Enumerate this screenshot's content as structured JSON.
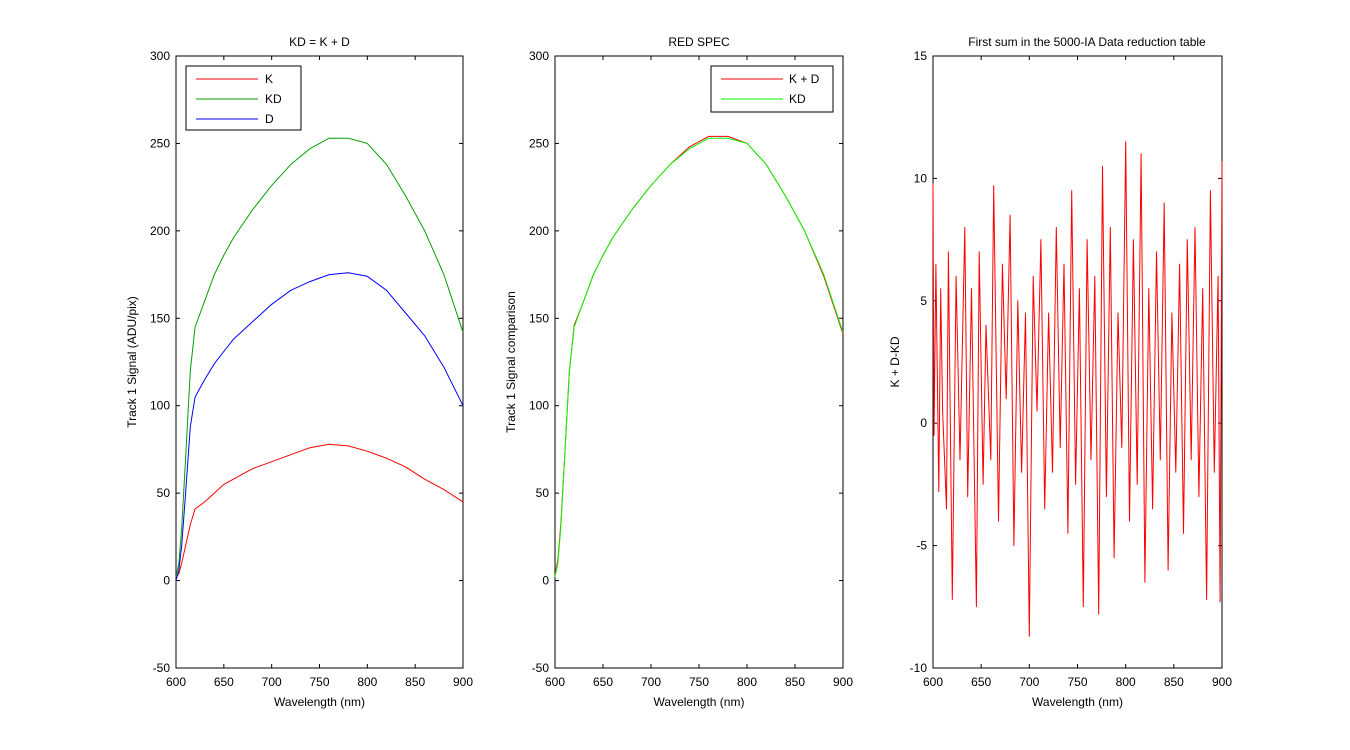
{
  "chart_data": [
    {
      "type": "line",
      "title": "KD = K + D",
      "xlabel": "Wavelength (nm)",
      "ylabel": "Track 1 Signal (ADU/pix)",
      "xlim": [
        600,
        900
      ],
      "ylim": [
        -50,
        300
      ],
      "xticks": [
        "600",
        "650",
        "700",
        "750",
        "800",
        "850",
        "900"
      ],
      "yticks": [
        "-50",
        "0",
        "50",
        "100",
        "150",
        "200",
        "250",
        "300"
      ],
      "grid": false,
      "legend_position": "top-left",
      "series": [
        {
          "name": "K",
          "color": "#ff0000",
          "x": [
            600,
            603,
            606,
            610,
            615,
            620,
            630,
            640,
            650,
            660,
            680,
            700,
            720,
            740,
            760,
            780,
            800,
            820,
            840,
            860,
            880,
            900
          ],
          "y": [
            2,
            4,
            10,
            20,
            32,
            41,
            45,
            50,
            55,
            58,
            64,
            68,
            72,
            76,
            78,
            77,
            74,
            70,
            65,
            58,
            52,
            45
          ]
        },
        {
          "name": "KD",
          "color": "#00a000",
          "x": [
            600,
            603,
            606,
            610,
            615,
            620,
            630,
            640,
            650,
            660,
            680,
            700,
            720,
            740,
            760,
            780,
            800,
            820,
            840,
            860,
            880,
            900
          ],
          "y": [
            2,
            10,
            30,
            70,
            120,
            145,
            160,
            175,
            186,
            196,
            212,
            226,
            238,
            247,
            253,
            253,
            250,
            238,
            220,
            200,
            175,
            142
          ]
        },
        {
          "name": "D",
          "color": "#0000ff",
          "x": [
            600,
            603,
            606,
            610,
            615,
            620,
            630,
            640,
            650,
            660,
            680,
            700,
            720,
            740,
            760,
            780,
            800,
            820,
            840,
            860,
            880,
            900
          ],
          "y": [
            0,
            6,
            20,
            50,
            88,
            105,
            115,
            124,
            131,
            138,
            148,
            158,
            166,
            171,
            175,
            176,
            174,
            166,
            153,
            140,
            122,
            100
          ]
        }
      ]
    },
    {
      "type": "line",
      "title": "RED SPEC",
      "xlabel": "Wavelength (nm)",
      "ylabel": "Track 1 Signal comparison",
      "xlim": [
        600,
        900
      ],
      "ylim": [
        -50,
        300
      ],
      "xticks": [
        "600",
        "650",
        "700",
        "750",
        "800",
        "850",
        "900"
      ],
      "yticks": [
        "-50",
        "0",
        "50",
        "100",
        "150",
        "200",
        "250",
        "300"
      ],
      "grid": false,
      "legend_position": "top-right",
      "series": [
        {
          "name": "K + D",
          "color": "#ff0000",
          "x": [
            600,
            603,
            606,
            610,
            615,
            620,
            630,
            640,
            650,
            660,
            680,
            700,
            720,
            740,
            760,
            780,
            800,
            820,
            840,
            860,
            880,
            900
          ],
          "y": [
            3,
            12,
            32,
            70,
            120,
            146,
            160,
            175,
            186,
            196,
            212,
            226,
            238,
            248,
            254,
            254,
            250,
            238,
            220,
            200,
            174,
            141
          ]
        },
        {
          "name": "KD",
          "color": "#00ff00",
          "x": [
            600,
            603,
            606,
            610,
            615,
            620,
            630,
            640,
            650,
            660,
            680,
            700,
            720,
            740,
            760,
            780,
            800,
            820,
            840,
            860,
            880,
            900
          ],
          "y": [
            2,
            10,
            30,
            70,
            120,
            145,
            160,
            175,
            186,
            196,
            212,
            226,
            238,
            247,
            253,
            253,
            250,
            238,
            220,
            200,
            175,
            142
          ]
        }
      ]
    },
    {
      "type": "line",
      "title": "First sum in the 5000-IA Data reduction table",
      "xlabel": "Wavelength (nm)",
      "ylabel": "K + D-KD",
      "xlim": [
        600,
        900
      ],
      "ylim": [
        -10,
        15
      ],
      "xticks": [
        "600",
        "650",
        "700",
        "750",
        "800",
        "850",
        "900"
      ],
      "yticks": [
        "-10",
        "-5",
        "0",
        "5",
        "10",
        "15"
      ],
      "grid": false,
      "series": [
        {
          "color": "#ff0000",
          "x": [
            600,
            601,
            603,
            606,
            608,
            610,
            614,
            616,
            620,
            624,
            628,
            633,
            636,
            640,
            645,
            648,
            652,
            655,
            660,
            663,
            668,
            672,
            676,
            680,
            684,
            688,
            692,
            696,
            700,
            704,
            708,
            712,
            716,
            720,
            724,
            728,
            732,
            736,
            740,
            744,
            748,
            752,
            756,
            760,
            764,
            768,
            772,
            776,
            780,
            784,
            788,
            792,
            796,
            800,
            804,
            808,
            812,
            816,
            820,
            824,
            828,
            832,
            836,
            840,
            844,
            848,
            852,
            856,
            860,
            864,
            868,
            872,
            876,
            880,
            884,
            888,
            892,
            896,
            898,
            900
          ],
          "y": [
            9.8,
            -0.5,
            6.5,
            -2.8,
            5.5,
            0.5,
            -3.5,
            7.0,
            -7.2,
            6.0,
            -1.5,
            8.0,
            -3.0,
            5.5,
            -7.5,
            7.0,
            -2.5,
            4.0,
            -1.5,
            9.7,
            -4.0,
            6.5,
            1.0,
            8.5,
            -5.0,
            5.0,
            -2.0,
            4.5,
            -8.7,
            6.0,
            0.5,
            7.5,
            -3.5,
            4.5,
            -2.0,
            8.0,
            -1.0,
            6.5,
            -4.5,
            9.5,
            -2.5,
            5.5,
            -7.5,
            7.5,
            -1.5,
            6.0,
            -7.8,
            10.5,
            -3.0,
            8.0,
            -5.5,
            4.5,
            -1.0,
            11.5,
            -4.0,
            7.5,
            -2.5,
            11.0,
            -6.5,
            5.5,
            -3.5,
            7.0,
            -1.5,
            9.0,
            -6.0,
            4.5,
            -2.0,
            6.5,
            -4.5,
            7.5,
            -1.5,
            8.0,
            -3.0,
            5.5,
            -7.2,
            9.5,
            -2.0,
            6.0,
            -7.3,
            10.7
          ]
        }
      ]
    }
  ]
}
